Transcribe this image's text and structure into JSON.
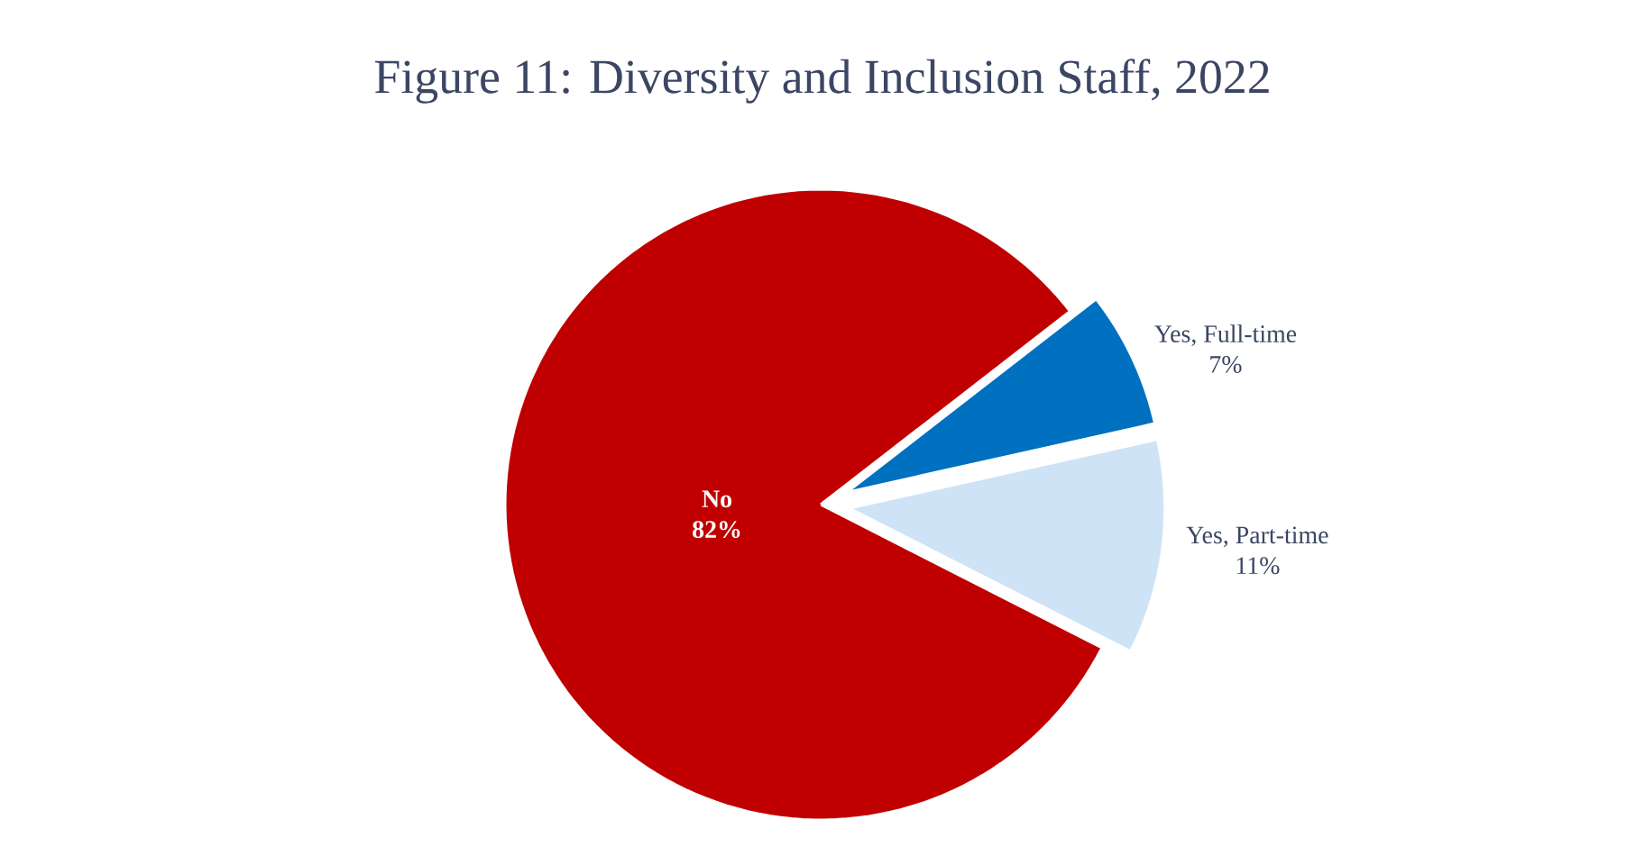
{
  "chart_data": {
    "type": "pie",
    "title": "Figure 11: Diversity and Inclusion Staff, 2022",
    "categories": [
      "No",
      "Yes, Full-time",
      "Yes, Part-time"
    ],
    "values": [
      82,
      7,
      11
    ],
    "value_labels": [
      "82%",
      "7%",
      "11%"
    ],
    "colors": [
      "#c00000",
      "#0070c0",
      "#cfe3f7"
    ]
  }
}
